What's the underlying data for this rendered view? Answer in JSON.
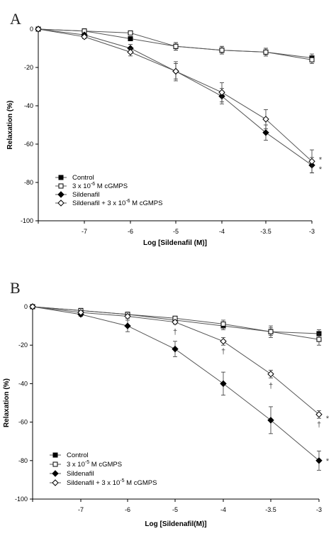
{
  "chart_data": [
    {
      "panel": "A",
      "type": "line",
      "xlabel": "Log [Sildenafil (M)]",
      "ylabel": "Relaxation (%)",
      "categories": [
        "",
        "-7",
        "-6",
        "-5",
        "-4",
        "-3.5",
        "-3"
      ],
      "ylim": [
        -100,
        0
      ],
      "yticks": [
        0,
        -20,
        -40,
        -60,
        -80,
        -100
      ],
      "legend_position": "lower-left",
      "series": [
        {
          "name": "Control",
          "marker": "square-filled",
          "values": [
            0,
            -1,
            -5,
            -9,
            -11,
            -12,
            -15
          ],
          "errors": [
            0,
            1,
            1,
            2,
            2,
            2,
            2
          ]
        },
        {
          "name": "3 x 10-6 M cGMPS",
          "marker": "square-open",
          "values": [
            0,
            -1,
            -2,
            -9,
            -11,
            -12,
            -16
          ],
          "errors": [
            0,
            1,
            1,
            2,
            2,
            2,
            2
          ]
        },
        {
          "name": "Sildenafil",
          "marker": "diamond-filled",
          "values": [
            0,
            -3,
            -10,
            -22,
            -35,
            -54,
            -71
          ],
          "errors": [
            0,
            1,
            2,
            4,
            4,
            4,
            4
          ]
        },
        {
          "name": "Sildenafil + 3 x 10-6 M cGMPS",
          "marker": "diamond-open",
          "values": [
            0,
            -4,
            -12,
            -22,
            -33,
            -47,
            -69
          ],
          "errors": [
            0,
            1,
            2,
            5,
            5,
            5,
            6
          ]
        }
      ],
      "annotations": [
        {
          "text": "*",
          "x": "-3",
          "y": -68
        },
        {
          "text": "*",
          "x": "-3",
          "y": -73
        }
      ]
    },
    {
      "panel": "B",
      "type": "line",
      "xlabel": "Log [Sildenafil(M)]",
      "ylabel": "Relaxation (%)",
      "categories": [
        "",
        "-7",
        "-6",
        "-5",
        "-4",
        "-3.5",
        "-3"
      ],
      "ylim": [
        -100,
        0
      ],
      "yticks": [
        0,
        -20,
        -40,
        -60,
        -80,
        -100
      ],
      "legend_position": "lower-left",
      "series": [
        {
          "name": "Control",
          "marker": "square-filled",
          "values": [
            0,
            -2,
            -4,
            -7,
            -10,
            -13,
            -14
          ],
          "errors": [
            0,
            1,
            1,
            1,
            2,
            2,
            2
          ]
        },
        {
          "name": "3 x 10-5 M cGMPS",
          "marker": "square-open",
          "values": [
            0,
            -2,
            -4,
            -6,
            -9,
            -13,
            -17
          ],
          "errors": [
            0,
            1,
            1,
            1,
            2,
            3,
            3
          ]
        },
        {
          "name": "Sildenafil",
          "marker": "diamond-filled",
          "values": [
            0,
            -4,
            -10,
            -22,
            -40,
            -59,
            -80
          ],
          "errors": [
            0,
            1,
            3,
            4,
            6,
            7,
            5
          ]
        },
        {
          "name": "Sildenafil + 3 x 10-5 M cGMPS",
          "marker": "diamond-open",
          "values": [
            0,
            -3,
            -5,
            -8,
            -18,
            -35,
            -56
          ],
          "errors": [
            0,
            1,
            1,
            1,
            2,
            2,
            2
          ]
        }
      ],
      "annotations": [
        {
          "text": "†",
          "x": "-5",
          "y": -13
        },
        {
          "text": "†",
          "x": "-4",
          "y": -23
        },
        {
          "text": "†",
          "x": "-3.5",
          "y": -41
        },
        {
          "text": "†",
          "x": "-3",
          "y": -61
        },
        {
          "text": "*",
          "x": "-3",
          "y": -58
        },
        {
          "text": "*",
          "x": "-3",
          "y": -80
        }
      ]
    }
  ]
}
